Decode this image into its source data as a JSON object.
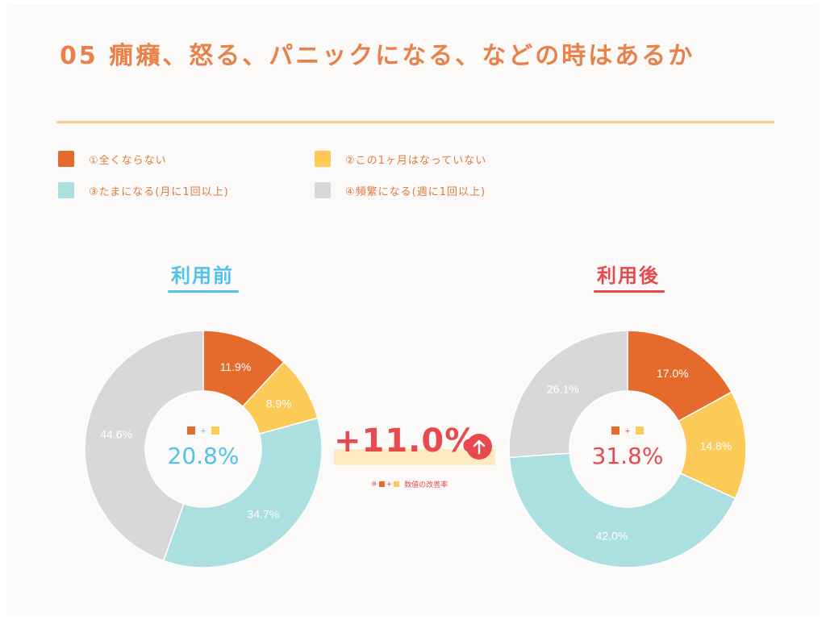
{
  "title": "05 癇癪、怒る、パニックになる、などの時はあるか",
  "colors": {
    "title": "#e8824a",
    "rule": "#f7cf8a",
    "before_accent": "#4fc3e8",
    "after_accent": "#e64a4f"
  },
  "legend": [
    {
      "label": "①全くならない",
      "color": "#e56b2c"
    },
    {
      "label": "②この1ヶ月はなっていない",
      "color": "#fccb57"
    },
    {
      "label": "③たまになる(月に1回以上)",
      "color": "#abdfe0"
    },
    {
      "label": "④頻繁になる(週に1回以上)",
      "color": "#d8d8d8"
    }
  ],
  "chart_data": [
    {
      "type": "pie",
      "title": "利用前",
      "categories": [
        "①全くならない",
        "②この1ヶ月はなっていない",
        "③たまになる(月に1回以上)",
        "④頻繁になる(週に1回以上)"
      ],
      "values": [
        11.9,
        8.9,
        34.7,
        44.6
      ],
      "labels": [
        "11.9%",
        "8.9%",
        "34.7%",
        "44.6%"
      ],
      "colors": [
        "#e56b2c",
        "#fccb57",
        "#abdfe0",
        "#d8d8d8"
      ],
      "center_value": "20.8%",
      "center_legend": "+"
    },
    {
      "type": "pie",
      "title": "利用後",
      "categories": [
        "①全くならない",
        "②この1ヶ月はなっていない",
        "③たまになる(月に1回以上)",
        "④頻繁になる(週に1回以上)"
      ],
      "values": [
        17.0,
        14.8,
        42.0,
        26.1
      ],
      "labels": [
        "17.0%",
        "14.8%",
        "42.0%",
        "26.1%"
      ],
      "colors": [
        "#e56b2c",
        "#fccb57",
        "#abdfe0",
        "#d8d8d8"
      ],
      "center_value": "31.8%",
      "center_legend": "+"
    }
  ],
  "comparison": {
    "value": "+11.0%",
    "note_prefix": "※",
    "note_plus": "+",
    "note_text": "数値の改善率"
  }
}
